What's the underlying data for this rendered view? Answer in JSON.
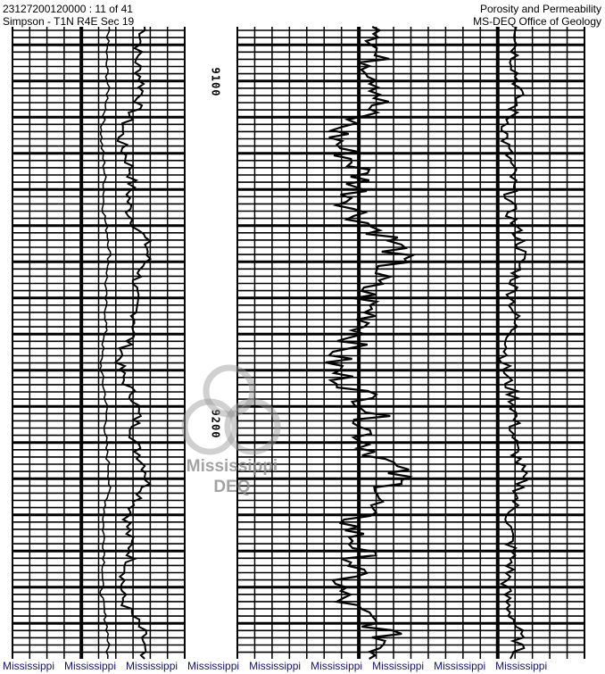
{
  "header": {
    "well_id_page": "23127200120000 : 11 of 41",
    "location": "Simpson - T1N R4E Sec 19",
    "log_type": "Porosity and Permeability",
    "source": "MS-DEQ Office of Geology"
  },
  "depth_labels": [
    "9100",
    "9200"
  ],
  "watermark": {
    "line1": "Mississippi",
    "line2": "DEQ"
  },
  "footer": {
    "items": [
      "Mississippi",
      "Mississippi",
      "Mississippi",
      "Mississippi",
      "Mississippi",
      "Mississippi",
      "Mississippi",
      "Mississippi",
      "Mississippi"
    ]
  },
  "colors": {
    "footer_text": "#141464",
    "grid": "#000000",
    "watermark": "#969696"
  }
}
